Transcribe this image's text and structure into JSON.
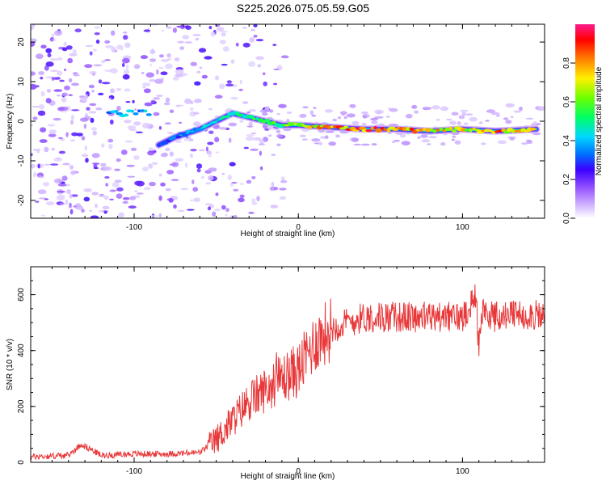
{
  "title": "S225.2026.075.05.59.G05",
  "chart_data": [
    {
      "type": "heatmap",
      "xlabel": "Height of straight line (km)",
      "ylabel": "Frequency (Hz)",
      "xlim": [
        -163,
        150
      ],
      "ylim": [
        -24.5,
        24.5
      ],
      "x_ticks": [
        -100,
        0,
        100
      ],
      "y_ticks": [
        -20,
        -10,
        0,
        10,
        20
      ],
      "colorbar": {
        "label": "Normalized spectral amplitude",
        "range": [
          0,
          1
        ],
        "ticks": [
          "0.0",
          "0.2",
          "0.4",
          "0.6",
          "0.8"
        ],
        "colors": [
          "#ffffff",
          "#cc99ff",
          "#8a2be2",
          "#0000ff",
          "#00bfff",
          "#00ff7f",
          "#7fff00",
          "#ffff00",
          "#ff8c00",
          "#ff0000",
          "#ff1493"
        ]
      },
      "ridge": {
        "x": [
          -85,
          -75,
          -60,
          -50,
          -40,
          -30,
          -20,
          -10,
          0,
          20,
          40,
          60,
          80,
          100,
          120,
          145
        ],
        "freq": [
          -6,
          -4,
          -2,
          0,
          2,
          1,
          0,
          -1,
          -1,
          -1.5,
          -2,
          -2,
          -2.5,
          -2,
          -2.5,
          -2
        ],
        "amplitude": [
          0.3,
          0.35,
          0.4,
          0.45,
          0.5,
          0.55,
          0.6,
          0.6,
          0.7,
          0.85,
          0.95,
          0.9,
          0.8,
          0.75,
          0.85,
          0.7
        ]
      }
    },
    {
      "type": "line",
      "xlabel": "Height of straight line (km)",
      "ylabel": "SNR (10 * v/v)",
      "xlim": [
        -163,
        150
      ],
      "ylim": [
        0,
        700
      ],
      "x_ticks": [
        -100,
        0,
        100
      ],
      "y_ticks": [
        0,
        200,
        400,
        600
      ],
      "series": [
        {
          "name": "SNR",
          "color": "#e8383a",
          "x": [
            -163,
            -140,
            -132,
            -120,
            -100,
            -80,
            -60,
            -50,
            -40,
            -30,
            -20,
            -10,
            0,
            10,
            20,
            30,
            40,
            60,
            80,
            100,
            108,
            110,
            112,
            120,
            140,
            150
          ],
          "y": [
            20,
            25,
            65,
            25,
            30,
            30,
            35,
            80,
            150,
            220,
            260,
            300,
            330,
            430,
            480,
            500,
            520,
            520,
            520,
            520,
            600,
            420,
            540,
            520,
            530,
            520
          ]
        }
      ]
    }
  ]
}
